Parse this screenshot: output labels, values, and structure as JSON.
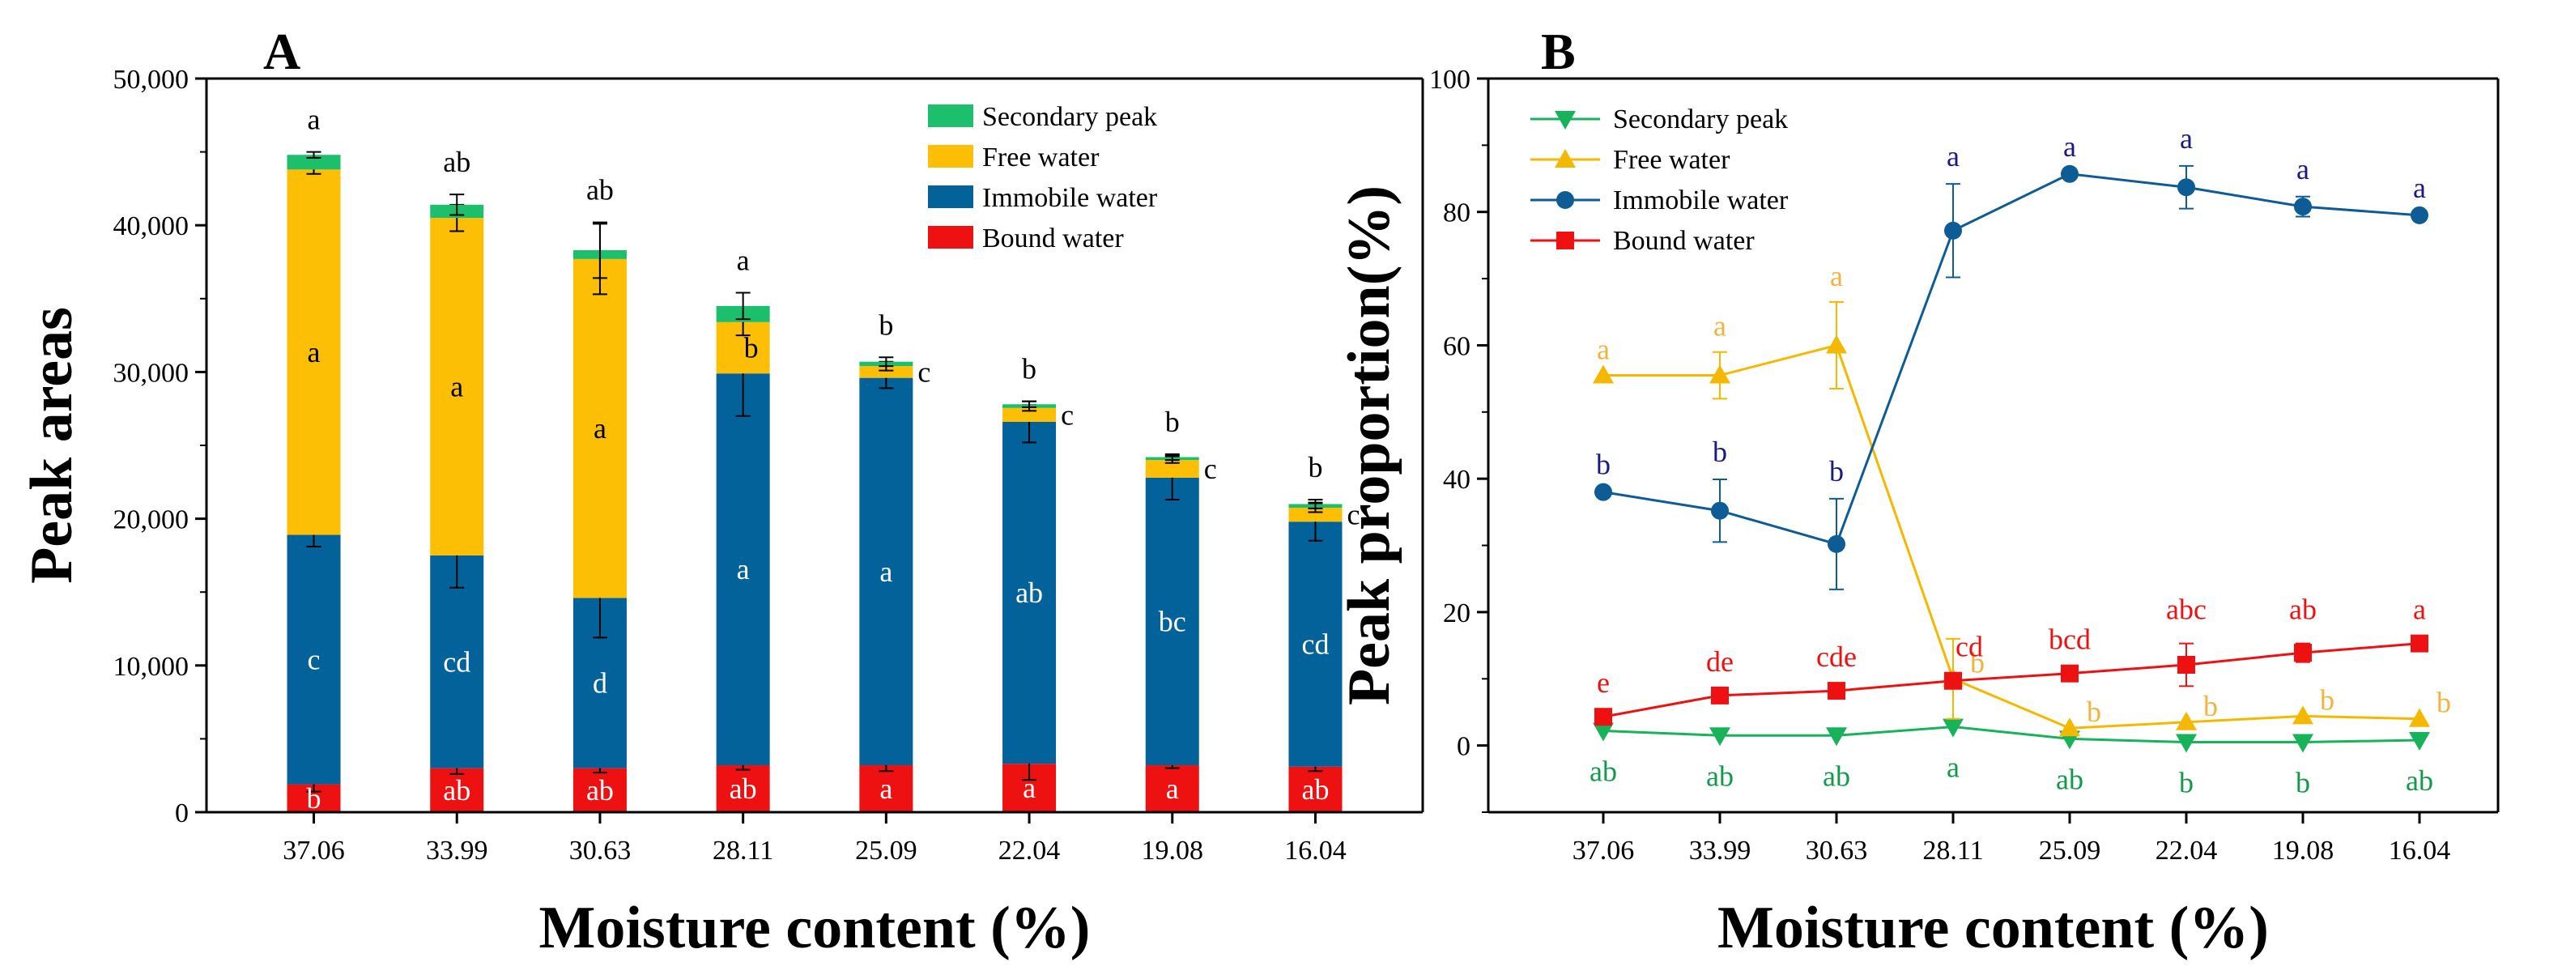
{
  "chart_data": [
    {
      "type": "bar",
      "stacked": true,
      "panel_label": "A",
      "xlabel": "Moisture content (%)",
      "ylabel": "Peak areas",
      "ylim": [
        0,
        50000
      ],
      "yticks": [
        0,
        10000,
        20000,
        30000,
        40000,
        50000
      ],
      "ytick_labels": [
        "0",
        "10,000",
        "20,000",
        "30,000",
        "40,000",
        "50,000"
      ],
      "categories": [
        "37.06",
        "33.99",
        "30.63",
        "28.11",
        "25.09",
        "22.04",
        "19.08",
        "16.04"
      ],
      "legend_position": "top-right",
      "series": [
        {
          "name": "Bound water",
          "color": "#ee1111",
          "values": [
            1900,
            3000,
            3000,
            3200,
            3200,
            3300,
            3200,
            3100
          ],
          "errors": [
            500,
            400,
            300,
            300,
            400,
            1100,
            200,
            300
          ],
          "labels": [
            "b",
            "ab",
            "ab",
            "ab",
            "a",
            "a",
            "a",
            "ab"
          ]
        },
        {
          "name": "Immobile water",
          "color": "#04629a",
          "values": [
            17000,
            14500,
            11600,
            26700,
            26400,
            23300,
            19600,
            16700
          ],
          "errors": [
            800,
            2200,
            2700,
            2900,
            700,
            1400,
            1500,
            1300
          ],
          "labels": [
            "c",
            "cd",
            "d",
            "a",
            "a",
            "ab",
            "bc",
            "cd"
          ]
        },
        {
          "name": "Free water",
          "color": "#fcbf05",
          "values": [
            24900,
            23000,
            23100,
            3500,
            800,
            950,
            1200,
            950
          ],
          "errors": [
            300,
            900,
            2400,
            900,
            300,
            200,
            200,
            300
          ],
          "labels": [
            "a",
            "a",
            "a",
            "b",
            "c",
            "c",
            "c",
            "c"
          ]
        },
        {
          "name": "Secondary peak",
          "color": "#1dbf6d",
          "values": [
            1000,
            900,
            600,
            1100,
            300,
            250,
            200,
            250
          ],
          "errors": [
            200,
            700,
            1900,
            900,
            300,
            200,
            200,
            300
          ],
          "labels": [
            "a",
            "ab",
            "ab",
            "a",
            "b",
            "b",
            "b",
            "b"
          ]
        }
      ]
    },
    {
      "type": "line",
      "panel_label": "B",
      "xlabel": "Moisture content (%)",
      "ylabel": "Peak proportion(%)",
      "ylim": [
        -10,
        100
      ],
      "yticks": [
        0,
        20,
        40,
        60,
        80,
        100
      ],
      "ytick_labels": [
        "0",
        "20",
        "40",
        "60",
        "80",
        "100"
      ],
      "categories": [
        "37.06",
        "33.99",
        "30.63",
        "28.11",
        "25.09",
        "22.04",
        "19.08",
        "16.04"
      ],
      "legend_position": "top-left",
      "series": [
        {
          "name": "Secondary peak",
          "color": "#17b25a",
          "marker": "triangle-down",
          "values": [
            2.2,
            1.5,
            1.5,
            2.8,
            1.0,
            0.5,
            0.5,
            0.8
          ],
          "errors": [
            0,
            0,
            0,
            0,
            0,
            0,
            0,
            0
          ],
          "labels": [
            "ab",
            "ab",
            "ab",
            "a",
            "ab",
            "b",
            "b",
            "ab"
          ]
        },
        {
          "name": "Free water",
          "color": "#f5b800",
          "marker": "triangle-up",
          "values": [
            55.5,
            55.5,
            60.0,
            10.0,
            2.6,
            3.5,
            4.4,
            4.0
          ],
          "errors": [
            0,
            3.5,
            6.5,
            6.0,
            0,
            0,
            0,
            0
          ],
          "labels": [
            "a",
            "a",
            "a",
            "b",
            "b",
            "b",
            "b",
            "b"
          ]
        },
        {
          "name": "Immobile water",
          "color": "#0d5c96",
          "marker": "circle",
          "values": [
            38.0,
            35.2,
            30.2,
            77.2,
            85.7,
            83.7,
            80.8,
            79.5
          ],
          "errors": [
            0,
            4.7,
            6.8,
            7.0,
            0,
            3.2,
            1.5,
            0
          ],
          "labels": [
            "b",
            "b",
            "b",
            "a",
            "a",
            "a",
            "a",
            "a"
          ]
        },
        {
          "name": "Bound water",
          "color": "#ee1111",
          "marker": "square",
          "values": [
            4.3,
            7.5,
            8.2,
            9.7,
            10.8,
            12.1,
            13.9,
            15.3
          ],
          "errors": [
            0,
            0,
            0,
            0,
            0,
            3.2,
            1.4,
            0
          ],
          "labels": [
            "e",
            "de",
            "cde",
            "cd",
            "bcd",
            "abc",
            "ab",
            "a"
          ]
        }
      ]
    }
  ]
}
